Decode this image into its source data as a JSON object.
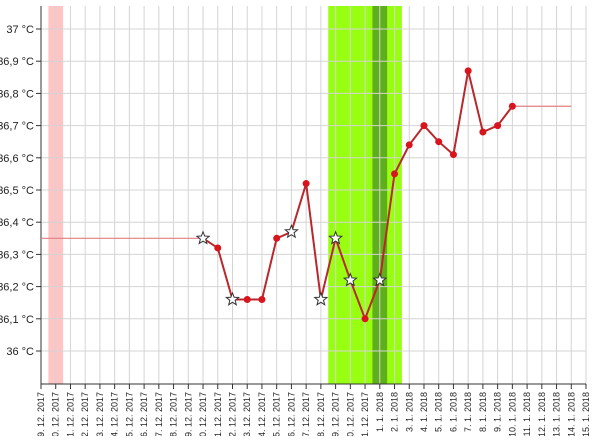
{
  "chart_data": {
    "type": "line",
    "title": "",
    "xlabel": "",
    "ylabel": "",
    "ylim": [
      35.9,
      37.07
    ],
    "grid": true,
    "y_ticks": [
      {
        "value": 36.0,
        "label": "36 °C"
      },
      {
        "value": 36.1,
        "label": "36,1 °C"
      },
      {
        "value": 36.2,
        "label": "36,2 °C"
      },
      {
        "value": 36.3,
        "label": "36,3 °C"
      },
      {
        "value": 36.4,
        "label": "36,4 °C"
      },
      {
        "value": 36.5,
        "label": "36,5 °C"
      },
      {
        "value": 36.6,
        "label": "36,6 °C"
      },
      {
        "value": 36.7,
        "label": "36,7 °C"
      },
      {
        "value": 36.8,
        "label": "36,8 °C"
      },
      {
        "value": 36.9,
        "label": "36,9 °C"
      },
      {
        "value": 37.0,
        "label": "37 °C"
      }
    ],
    "categories": [
      "9. 12. 2017",
      "10. 12. 2017",
      "11. 12. 2017",
      "12. 12. 2017",
      "13. 12. 2017",
      "14. 12. 2017",
      "15. 12. 2017",
      "16. 12. 2017",
      "17. 12. 2017",
      "18. 12. 2017",
      "19. 12. 2017",
      "20. 12. 2017",
      "21. 12. 2017",
      "22. 12. 2017",
      "23. 12. 2017",
      "24. 12. 2017",
      "25. 12. 2017",
      "26. 12. 2017",
      "27. 12. 2017",
      "28. 12. 2017",
      "29. 12. 2017",
      "30. 12. 2017",
      "31. 12. 2017",
      "1. 1. 2018",
      "2. 1. 2018",
      "3. 1. 2018",
      "4. 1. 2018",
      "5. 1. 2018",
      "6. 1. 2018",
      "7. 1. 2018",
      "8. 1. 2018",
      "9. 1. 2018",
      "10. 1. 2018",
      "11. 1. 2018",
      "12. 1. 2018",
      "13. 1. 2018",
      "14. 1. 2018",
      "15. 1. 2018"
    ],
    "series": [
      {
        "color": "#b8282c",
        "marker_color": "#d9141c",
        "points": [
          {
            "x": "20. 12. 2017",
            "y": 36.35,
            "marker": "star"
          },
          {
            "x": "21. 12. 2017",
            "y": 36.32,
            "marker": "dot"
          },
          {
            "x": "22. 12. 2017",
            "y": 36.16,
            "marker": "star"
          },
          {
            "x": "23. 12. 2017",
            "y": 36.16,
            "marker": "dot"
          },
          {
            "x": "24. 12. 2017",
            "y": 36.16,
            "marker": "dot"
          },
          {
            "x": "25. 12. 2017",
            "y": 36.35,
            "marker": "dot"
          },
          {
            "x": "26. 12. 2017",
            "y": 36.37,
            "marker": "star"
          },
          {
            "x": "27. 12. 2017",
            "y": 36.52,
            "marker": "dot"
          },
          {
            "x": "28. 12. 2017",
            "y": 36.16,
            "marker": "star"
          },
          {
            "x": "29. 12. 2017",
            "y": 36.35,
            "marker": "star"
          },
          {
            "x": "30. 12. 2017",
            "y": 36.22,
            "marker": "star"
          },
          {
            "x": "31. 12. 2017",
            "y": 36.1,
            "marker": "dot"
          },
          {
            "x": "1. 1. 2018",
            "y": 36.22,
            "marker": "star"
          },
          {
            "x": "2. 1. 2018",
            "y": 36.55,
            "marker": "dot"
          },
          {
            "x": "3. 1. 2018",
            "y": 36.64,
            "marker": "dot"
          },
          {
            "x": "4. 1. 2018",
            "y": 36.7,
            "marker": "dot"
          },
          {
            "x": "5. 1. 2018",
            "y": 36.65,
            "marker": "dot"
          },
          {
            "x": "6. 1. 2018",
            "y": 36.61,
            "marker": "dot"
          },
          {
            "x": "7. 1. 2018",
            "y": 36.87,
            "marker": "dot"
          },
          {
            "x": "8. 1. 2018",
            "y": 36.68,
            "marker": "dot"
          },
          {
            "x": "9. 1. 2018",
            "y": 36.7,
            "marker": "dot"
          },
          {
            "x": "10. 1. 2018",
            "y": 36.76,
            "marker": "dot"
          }
        ]
      }
    ],
    "reference_lines": [
      {
        "from": "9. 12. 2017",
        "to": "20. 12. 2017",
        "y": 36.35,
        "color": "#e08080"
      },
      {
        "from": "10. 1. 2018",
        "to": "14. 1. 2018",
        "y": 36.76,
        "color": "#e08080"
      }
    ],
    "bands": [
      {
        "from": "10. 12. 2017",
        "to": "10. 12. 2017",
        "color": "#ffc4c4"
      },
      {
        "from": "29. 12. 2017",
        "to": "2. 1. 2018",
        "color": "#99ff11"
      },
      {
        "from": "1. 1. 2018",
        "to": "1. 1. 2018",
        "color": "#5fae1c"
      }
    ]
  }
}
